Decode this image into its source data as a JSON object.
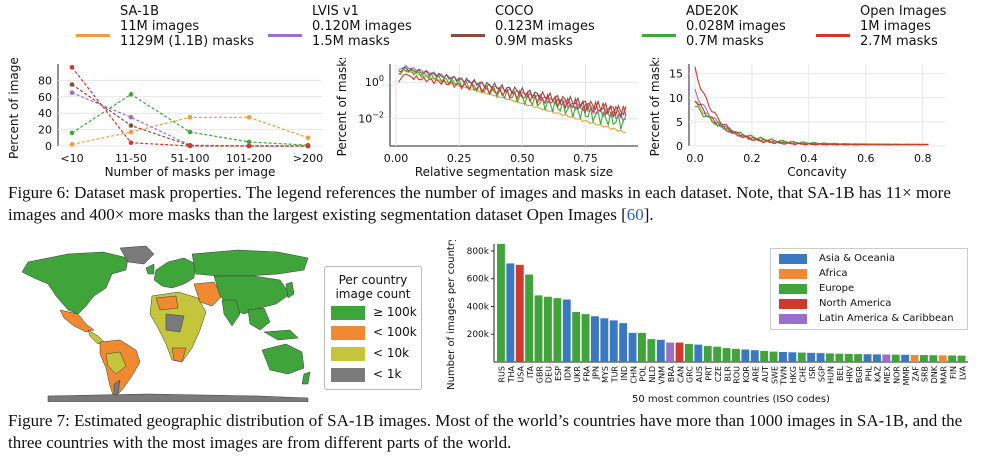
{
  "figure6": {
    "legend": [
      {
        "name": "SA-1B",
        "line1": "11M images",
        "line2": "1129M (1.1B) masks",
        "color": "#f39c3d"
      },
      {
        "name": "LVIS v1",
        "line1": "0.120M images",
        "line2": "1.5M masks",
        "color": "#9b6fd6"
      },
      {
        "name": "COCO",
        "line1": "0.123M images",
        "line2": "0.9M masks",
        "color": "#8b4a3c"
      },
      {
        "name": "ADE20K",
        "line1": "0.028M images",
        "line2": "0.7M masks",
        "color": "#3aaa35"
      },
      {
        "name": "Open Images",
        "line1": "1M images",
        "line2": "2.7M masks",
        "color": "#d9342b"
      }
    ],
    "caption_label": "Figure 6:",
    "caption_text": "Dataset mask properties. The legend references the number of images and masks in each dataset. Note, that SA-1B has 11× more images and 400× more masks than the largest existing segmentation dataset Open Images [",
    "caption_ref": "60",
    "caption_end": "]."
  },
  "chart_data": [
    {
      "type": "line",
      "xlabel": "Number of masks per image",
      "ylabel": "Percent of images",
      "categories": [
        "<10",
        "11-50",
        "51-100",
        "101-200",
        ">200"
      ],
      "ylim": [
        0,
        100
      ],
      "yticks": [
        "0",
        "20",
        "40",
        "60",
        "80"
      ],
      "grid": true,
      "series": [
        {
          "name": "SA-1B",
          "values": [
            2,
            17,
            35,
            35,
            10
          ]
        },
        {
          "name": "LVIS v1",
          "values": [
            65,
            35,
            1,
            0,
            0
          ]
        },
        {
          "name": "COCO",
          "values": [
            75,
            25,
            0.5,
            0,
            0
          ]
        },
        {
          "name": "ADE20K",
          "values": [
            16,
            63,
            17,
            5,
            1
          ]
        },
        {
          "name": "Open Images",
          "values": [
            96,
            4,
            0,
            0,
            0
          ]
        }
      ]
    },
    {
      "type": "line",
      "xlabel": "Relative segmentation mask size",
      "ylabel": "Percent of masks",
      "xlim": [
        0,
        0.95
      ],
      "xticks": [
        "0.00",
        "0.25",
        "0.50",
        "0.75"
      ],
      "yscale": "log",
      "ytick_labels": [
        "10^0",
        "10^-2"
      ],
      "grid": true,
      "series": [
        {
          "name": "SA-1B"
        },
        {
          "name": "LVIS v1"
        },
        {
          "name": "COCO"
        },
        {
          "name": "ADE20K"
        },
        {
          "name": "Open Images"
        }
      ]
    },
    {
      "type": "line",
      "xlabel": "Concavity",
      "ylabel": "Percent of masks",
      "xlim": [
        0,
        0.85
      ],
      "xticks": [
        "0.0",
        "0.2",
        "0.4",
        "0.6",
        "0.8"
      ],
      "ylim": [
        0,
        17
      ],
      "yticks": [
        "0",
        "5",
        "10",
        "15"
      ],
      "grid": true,
      "series": [
        {
          "name": "SA-1B"
        },
        {
          "name": "LVIS v1"
        },
        {
          "name": "COCO"
        },
        {
          "name": "ADE20K"
        },
        {
          "name": "Open Images"
        }
      ]
    },
    {
      "type": "bar",
      "xlabel": "50 most common countries (ISO codes)",
      "ylabel": "Number of images per country",
      "ylim": [
        0,
        850000
      ],
      "yticks": [
        "200k",
        "400k",
        "600k",
        "800k"
      ],
      "legend": [
        {
          "name": "Asia & Oceania",
          "color": "#3a78c2"
        },
        {
          "name": "Africa",
          "color": "#f0892f"
        },
        {
          "name": "Europe",
          "color": "#3fa53a"
        },
        {
          "name": "North America",
          "color": "#cf3a2f"
        },
        {
          "name": "Latin America & Caribbean",
          "color": "#9a6ecb"
        }
      ],
      "categories": [
        "RUS",
        "THA",
        "USA",
        "ITA",
        "GBR",
        "DEU",
        "ESP",
        "IDN",
        "UKR",
        "FRA",
        "JPN",
        "MYS",
        "TUR",
        "IND",
        "CHN",
        "POL",
        "NLD",
        "VNM",
        "BRA",
        "CAN",
        "GRC",
        "AUS",
        "PRT",
        "CZE",
        "BLR",
        "ROU",
        "KOR",
        "ARE",
        "AUT",
        "SWE",
        "TWN",
        "HKG",
        "CHE",
        "ISR",
        "SGP",
        "HUN",
        "BEL",
        "HRV",
        "BGR",
        "PHL",
        "KAZ",
        "MEX",
        "NOR",
        "MMR",
        "ZAF",
        "SRB",
        "DNK",
        "MAR",
        "FIN",
        "LVA"
      ],
      "regions": [
        "Europe",
        "Asia & Oceania",
        "North America",
        "Europe",
        "Europe",
        "Europe",
        "Europe",
        "Asia & Oceania",
        "Europe",
        "Europe",
        "Asia & Oceania",
        "Asia & Oceania",
        "Asia & Oceania",
        "Asia & Oceania",
        "Asia & Oceania",
        "Europe",
        "Europe",
        "Asia & Oceania",
        "Latin America & Caribbean",
        "North America",
        "Europe",
        "Asia & Oceania",
        "Europe",
        "Europe",
        "Europe",
        "Europe",
        "Asia & Oceania",
        "Asia & Oceania",
        "Europe",
        "Europe",
        "Asia & Oceania",
        "Asia & Oceania",
        "Europe",
        "Asia & Oceania",
        "Asia & Oceania",
        "Europe",
        "Europe",
        "Europe",
        "Europe",
        "Asia & Oceania",
        "Asia & Oceania",
        "Latin America & Caribbean",
        "Europe",
        "Asia & Oceania",
        "Africa",
        "Europe",
        "Europe",
        "Africa",
        "Europe",
        "Europe"
      ],
      "values": [
        850000,
        710000,
        700000,
        630000,
        480000,
        470000,
        460000,
        450000,
        360000,
        345000,
        330000,
        315000,
        300000,
        280000,
        210000,
        210000,
        165000,
        160000,
        140000,
        140000,
        130000,
        125000,
        115000,
        110000,
        100000,
        95000,
        90000,
        85000,
        80000,
        75000,
        72000,
        70000,
        68000,
        66000,
        64000,
        62000,
        60000,
        58000,
        57000,
        56000,
        55000,
        54000,
        53000,
        52000,
        51000,
        50000,
        49000,
        48000,
        47000,
        46000
      ]
    }
  ],
  "figure7": {
    "map_legend": {
      "title_line1": "Per country",
      "title_line2": "image count",
      "rows": [
        {
          "label": "≥ 100k",
          "color": "#3fa53a"
        },
        {
          "label": "< 100k",
          "color": "#f0892f"
        },
        {
          "label": "< 10k",
          "color": "#c5c53c"
        },
        {
          "label": "< 1k",
          "color": "#7a7a7a"
        }
      ]
    },
    "caption_label": "Figure 7:",
    "caption_text": "Estimated geographic distribution of SA-1B images. Most of the world’s countries have more than 1000 images in SA-1B, and the three countries with the most images are from different parts of the world."
  }
}
